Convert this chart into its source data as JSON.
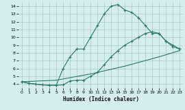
{
  "xlabel": "Humidex (Indice chaleur)",
  "xlim": [
    -0.5,
    23.5
  ],
  "ylim": [
    3.5,
    14.5
  ],
  "yticks": [
    4,
    5,
    6,
    7,
    8,
    9,
    10,
    11,
    12,
    13,
    14
  ],
  "xticks": [
    0,
    1,
    2,
    3,
    4,
    5,
    6,
    7,
    8,
    9,
    10,
    11,
    12,
    13,
    14,
    15,
    16,
    17,
    18,
    19,
    20,
    21,
    22,
    23
  ],
  "background_color": "#d5eeed",
  "grid_color": "#b0cfcc",
  "line_color": "#2a7a6a",
  "curve1_x": [
    0,
    1,
    2,
    3,
    4,
    5,
    6,
    7,
    8,
    9,
    10,
    11,
    12,
    13,
    14,
    15,
    16,
    17,
    18,
    19,
    20,
    21,
    22,
    23
  ],
  "curve1_y": [
    4.3,
    4.1,
    4.0,
    3.9,
    3.85,
    3.85,
    3.9,
    4.4,
    4.5,
    4.5,
    5.0,
    5.5,
    6.5,
    7.5,
    8.3,
    9.0,
    9.5,
    10.0,
    10.5,
    10.7,
    10.5,
    9.5,
    9.0,
    8.5
  ],
  "curve2_x": [
    0,
    1,
    2,
    3,
    4,
    5,
    6,
    7,
    8,
    9,
    10,
    11,
    12,
    13,
    14,
    15,
    16,
    17,
    18,
    19,
    20,
    21,
    22,
    23
  ],
  "curve2_y": [
    4.3,
    4.1,
    4.0,
    3.9,
    3.85,
    3.85,
    6.0,
    7.5,
    8.5,
    8.5,
    10.0,
    11.5,
    13.0,
    14.0,
    14.2,
    13.5,
    13.2,
    12.5,
    11.5,
    10.5,
    10.5,
    9.5,
    8.8,
    8.5
  ],
  "curve3_x": [
    0,
    5,
    10,
    15,
    20,
    23
  ],
  "curve3_y": [
    4.3,
    4.5,
    5.3,
    6.3,
    7.5,
    8.3
  ]
}
